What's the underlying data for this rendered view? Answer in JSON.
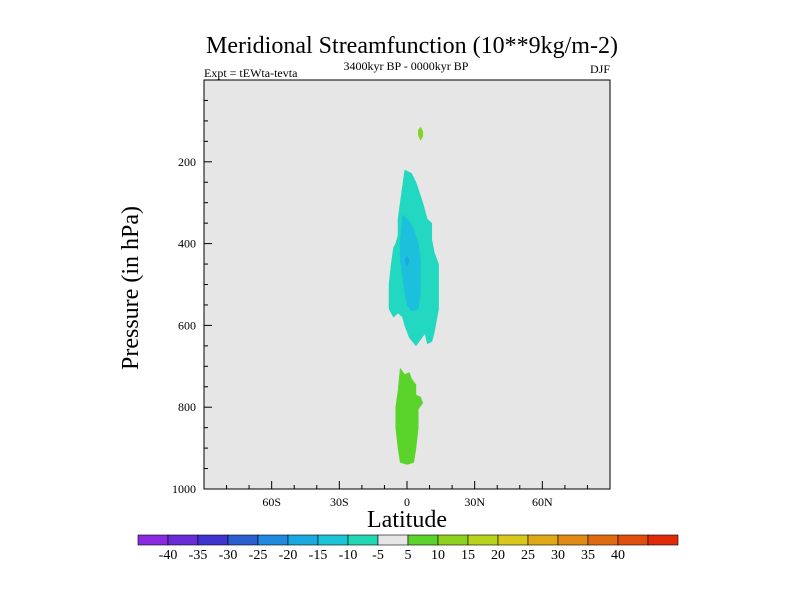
{
  "chart_data": {
    "type": "contour",
    "title": "Meridional Streamfunction (10**9kg/m-2)",
    "left_label": "Expt = tEWta-tevta",
    "center_label": "3400kyr BP - 0000kyr BP",
    "right_label": "DJF",
    "xlabel": "Latitude",
    "ylabel": "Pressure (in hPa)",
    "xlim": [
      -90,
      90
    ],
    "ylim": [
      1000,
      0
    ],
    "y_inverted": true,
    "xticks": [
      {
        "value": -60,
        "label": "60S"
      },
      {
        "value": -30,
        "label": "30S"
      },
      {
        "value": 0,
        "label": "0"
      },
      {
        "value": 30,
        "label": "30N"
      },
      {
        "value": 60,
        "label": "60N"
      }
    ],
    "yticks": [
      {
        "value": 200,
        "label": "200"
      },
      {
        "value": 400,
        "label": "400"
      },
      {
        "value": 600,
        "label": "600"
      },
      {
        "value": 800,
        "label": "800"
      },
      {
        "value": 1000,
        "label": "1000"
      }
    ],
    "y_minor_step": 50,
    "x_minor_step": 10,
    "background_color": "#e6e6e6",
    "colorbar": {
      "levels": [
        "-40",
        "-35",
        "-30",
        "-25",
        "-20",
        "-15",
        "-10",
        "-5",
        "5",
        "10",
        "15",
        "20",
        "25",
        "30",
        "35",
        "40"
      ],
      "colors": [
        "#8a2be2",
        "#6a2bd8",
        "#3f34d0",
        "#2a5fd0",
        "#1f8be0",
        "#1aa8e0",
        "#1cc4d8",
        "#22d8b4",
        "#e6e6e6",
        "#5ad42a",
        "#8fd21e",
        "#b8d41a",
        "#d8c81a",
        "#e0a814",
        "#e08a14",
        "#e06a10",
        "#e04e0c",
        "#e02a08"
      ]
    },
    "regions": [
      {
        "name": "green-cap-upper",
        "value": 5,
        "color": "#7fd62a",
        "polygon": [
          [
            6,
            115
          ],
          [
            7,
            125
          ],
          [
            7,
            138
          ],
          [
            6,
            148
          ],
          [
            5,
            135
          ],
          [
            5,
            122
          ]
        ]
      },
      {
        "name": "teal-upper",
        "value": -5,
        "color": "#22d8c0",
        "polygon": [
          [
            -1,
            220
          ],
          [
            2,
            228
          ],
          [
            4,
            250
          ],
          [
            7,
            300
          ],
          [
            9,
            340
          ],
          [
            11,
            350
          ],
          [
            11,
            390
          ],
          [
            12,
            420
          ],
          [
            14,
            450
          ],
          [
            14,
            560
          ],
          [
            12,
            620
          ],
          [
            11,
            640
          ],
          [
            9,
            645
          ],
          [
            8,
            620
          ],
          [
            6,
            635
          ],
          [
            4,
            650
          ],
          [
            1,
            630
          ],
          [
            -1,
            600
          ],
          [
            -2,
            580
          ],
          [
            -4,
            570
          ],
          [
            -6,
            580
          ],
          [
            -8,
            560
          ],
          [
            -8,
            500
          ],
          [
            -7,
            450
          ],
          [
            -6,
            410
          ],
          [
            -5,
            400
          ],
          [
            -4,
            380
          ],
          [
            -4,
            340
          ],
          [
            -3,
            300
          ],
          [
            -2,
            260
          ]
        ]
      },
      {
        "name": "cyan-core",
        "value": -10,
        "color": "#1cc0dc",
        "polygon": [
          [
            -2,
            330
          ],
          [
            1,
            345
          ],
          [
            3,
            365
          ],
          [
            5,
            400
          ],
          [
            6,
            440
          ],
          [
            6,
            520
          ],
          [
            5,
            560
          ],
          [
            2,
            565
          ],
          [
            0,
            550
          ],
          [
            -1,
            520
          ],
          [
            -2,
            480
          ],
          [
            -3,
            440
          ],
          [
            -3,
            400
          ]
        ]
      },
      {
        "name": "blue-dot",
        "value": -15,
        "color": "#1aa8e0",
        "polygon": [
          [
            -1,
            440
          ],
          [
            0,
            432
          ],
          [
            1,
            440
          ],
          [
            0,
            456
          ]
        ]
      },
      {
        "name": "green-lower",
        "value": 5,
        "color": "#5ad42a",
        "polygon": [
          [
            -3,
            705
          ],
          [
            -1,
            720
          ],
          [
            1,
            715
          ],
          [
            2,
            730
          ],
          [
            4,
            745
          ],
          [
            4,
            770
          ],
          [
            6,
            775
          ],
          [
            7,
            790
          ],
          [
            5,
            805
          ],
          [
            5,
            850
          ],
          [
            4,
            900
          ],
          [
            3,
            935
          ],
          [
            0,
            940
          ],
          [
            -3,
            935
          ],
          [
            -4,
            900
          ],
          [
            -5,
            850
          ],
          [
            -5,
            800
          ],
          [
            -4,
            760
          ]
        ]
      }
    ]
  }
}
